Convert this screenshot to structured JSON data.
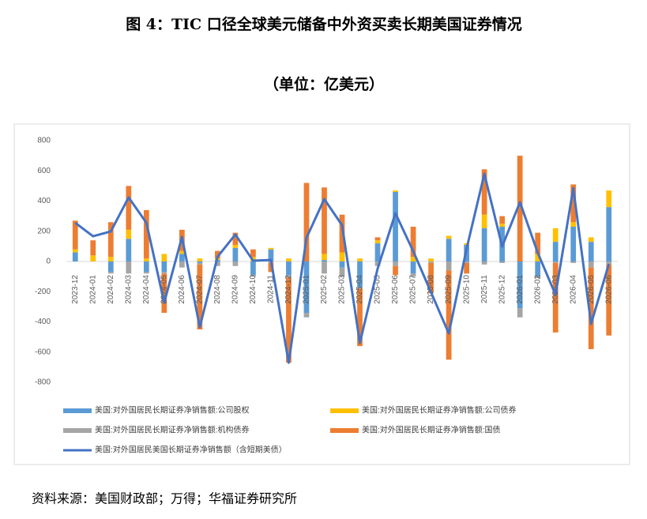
{
  "title": "图 4：TIC 口径全球美元储备中外资买卖长期美国证券情况",
  "subtitle": "（单位：亿美元）",
  "source": "资料来源：美国财政部；万得；华福证券研究所",
  "chart_data": {
    "type": "bar-line",
    "categories": [
      "2023-12",
      "2024-01",
      "2024-02",
      "2024-03",
      "2024-04",
      "2024-05",
      "2024-06",
      "2024-07",
      "2024-08",
      "2024-09",
      "2024-10",
      "2024-11",
      "2024-12",
      "2025-01",
      "2025-02",
      "2025-03",
      "2025-04",
      "2025-05",
      "2025-06",
      "2025-07",
      "2025-08",
      "2025-09",
      "2025-10",
      "2025-11",
      "2025-12",
      "2026-01",
      "2026-02",
      "2026-03",
      "2026-04",
      "2026-05",
      "2026-06"
    ],
    "series": [
      {
        "name": "美国:对外国居民长期证券净销售额:公司股权",
        "type": "bar",
        "color": "#5b9bd5",
        "values": [
          60,
          0,
          -70,
          150,
          -70,
          -70,
          50,
          -10,
          10,
          90,
          -90,
          80,
          -90,
          -340,
          10,
          -40,
          -170,
          120,
          460,
          -80,
          0,
          150,
          110,
          220,
          230,
          -310,
          -100,
          130,
          230,
          130,
          360
        ]
      },
      {
        "name": "美国:对外国居民长期证券净销售额:公司债券",
        "type": "bar",
        "color": "#ffc000",
        "values": [
          20,
          40,
          30,
          60,
          20,
          50,
          20,
          20,
          10,
          20,
          30,
          10,
          20,
          0,
          40,
          60,
          20,
          20,
          10,
          30,
          20,
          20,
          10,
          90,
          20,
          0,
          50,
          90,
          30,
          30,
          110
        ]
      },
      {
        "name": "美国:对外国居民长期证券净销售额:机构债券",
        "type": "bar",
        "color": "#a5a5a5",
        "values": [
          0,
          0,
          -10,
          -80,
          -10,
          -10,
          -40,
          -10,
          -30,
          -30,
          -10,
          -10,
          -20,
          -30,
          -80,
          -60,
          -10,
          -30,
          -30,
          -20,
          -10,
          -60,
          -10,
          -20,
          -10,
          -60,
          -10,
          -10,
          -10,
          -40,
          -20
        ]
      },
      {
        "name": "美国:对外国居民长期证券净销售额:国债",
        "type": "bar",
        "color": "#ed7d31",
        "values": [
          190,
          100,
          230,
          290,
          320,
          -260,
          140,
          -430,
          50,
          80,
          50,
          -60,
          -560,
          520,
          440,
          250,
          -380,
          20,
          -60,
          200,
          -200,
          -590,
          -70,
          300,
          50,
          700,
          140,
          -460,
          250,
          -540,
          -470
        ]
      },
      {
        "name": "美国:对外国居民美国长期证券净销售额（含短期美债）",
        "type": "line",
        "color": "#4472c4",
        "values": [
          256,
          167,
          199,
          424,
          256,
          -272,
          162,
          -434,
          31,
          178,
          5,
          10,
          -670,
          157,
          413,
          240,
          -539,
          -47,
          319,
          68,
          -204,
          -476,
          84,
          580,
          99,
          392,
          58,
          -220,
          486,
          -413,
          -16
        ]
      }
    ],
    "ylim": [
      -800,
      800
    ],
    "yticks": [
      -800,
      -600,
      -400,
      -200,
      0,
      200,
      400,
      600,
      800
    ],
    "grid": false
  }
}
